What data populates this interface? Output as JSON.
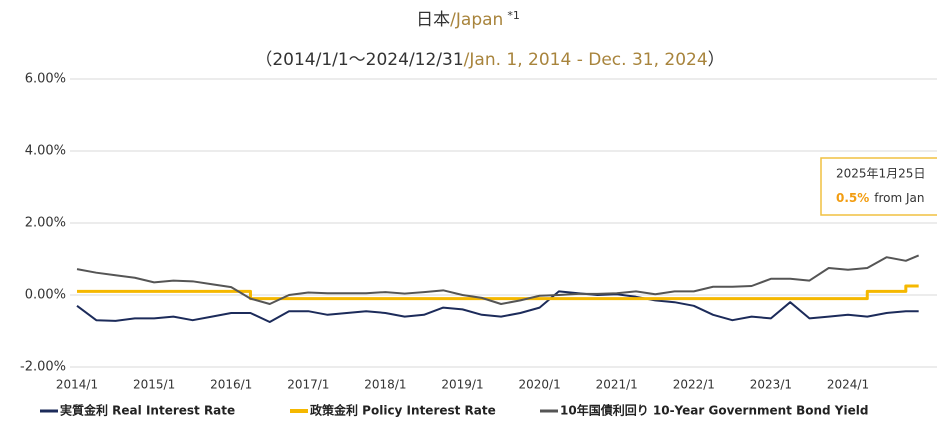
{
  "chart_data": {
    "type": "line",
    "title_parts": [
      "日本",
      "/Japan",
      "*1"
    ],
    "subtitle_parts": [
      "（2014/1/1～2024/12/31",
      "/Jan. 1, 2014 - Dec. 31, 2024",
      "）"
    ],
    "x": [
      "2014/1",
      "2014/4",
      "2014/7",
      "2014/10",
      "2015/1",
      "2015/4",
      "2015/7",
      "2015/10",
      "2016/1",
      "2016/4",
      "2016/7",
      "2016/10",
      "2017/1",
      "2017/4",
      "2017/7",
      "2017/10",
      "2018/1",
      "2018/4",
      "2018/7",
      "2018/10",
      "2019/1",
      "2019/4",
      "2019/7",
      "2019/10",
      "2020/1",
      "2020/4",
      "2020/7",
      "2020/10",
      "2021/1",
      "2021/4",
      "2021/7",
      "2021/10",
      "2022/1",
      "2022/4",
      "2022/7",
      "2022/10",
      "2023/1",
      "2023/4",
      "2023/7",
      "2023/10",
      "2024/1",
      "2024/4",
      "2024/7",
      "2024/10",
      "2024/12"
    ],
    "series": [
      {
        "name": "実質金利 Real Interest Rate",
        "color": "#1c2b5a",
        "values": [
          -0.3,
          -0.7,
          -0.72,
          -0.65,
          -0.65,
          -0.6,
          -0.7,
          -0.6,
          -0.5,
          -0.5,
          -0.75,
          -0.45,
          -0.45,
          -0.55,
          -0.5,
          -0.45,
          -0.5,
          -0.6,
          -0.55,
          -0.35,
          -0.4,
          -0.55,
          -0.6,
          -0.5,
          -0.35,
          0.1,
          0.05,
          0.0,
          0.02,
          -0.05,
          -0.15,
          -0.2,
          -0.3,
          -0.55,
          -0.7,
          -0.6,
          -0.65,
          -0.2,
          -0.65,
          -0.6,
          -0.55,
          -0.6,
          -0.5,
          -0.45,
          -0.45
        ]
      },
      {
        "name": "政策金利 Policy Interest Rate",
        "color": "#f5b800",
        "step": true,
        "values": [
          0.1,
          0.1,
          0.1,
          0.1,
          0.1,
          0.1,
          0.1,
          0.1,
          0.1,
          -0.1,
          -0.1,
          -0.1,
          -0.1,
          -0.1,
          -0.1,
          -0.1,
          -0.1,
          -0.1,
          -0.1,
          -0.1,
          -0.1,
          -0.1,
          -0.1,
          -0.1,
          -0.1,
          -0.1,
          -0.1,
          -0.1,
          -0.1,
          -0.1,
          -0.1,
          -0.1,
          -0.1,
          -0.1,
          -0.1,
          -0.1,
          -0.1,
          -0.1,
          -0.1,
          -0.1,
          -0.1,
          0.1,
          0.1,
          0.25,
          0.25
        ]
      },
      {
        "name": "10年国債利回り 10-Year Government Bond Yield",
        "color": "#555555",
        "values": [
          0.72,
          0.62,
          0.55,
          0.48,
          0.35,
          0.4,
          0.38,
          0.3,
          0.22,
          -0.1,
          -0.25,
          0.0,
          0.07,
          0.05,
          0.05,
          0.05,
          0.08,
          0.04,
          0.08,
          0.13,
          0.0,
          -0.08,
          -0.25,
          -0.15,
          -0.02,
          0.0,
          0.03,
          0.03,
          0.05,
          0.1,
          0.02,
          0.1,
          0.1,
          0.23,
          0.23,
          0.25,
          0.45,
          0.45,
          0.4,
          0.75,
          0.7,
          0.75,
          1.05,
          0.95,
          1.1
        ]
      }
    ],
    "xticks": [
      "2014/1",
      "2015/1",
      "2016/1",
      "2017/1",
      "2018/1",
      "2019/1",
      "2020/1",
      "2021/1",
      "2022/1",
      "2023/1",
      "2024/1"
    ],
    "ylim": [
      -2,
      6
    ],
    "yticks": [
      {
        "value": -2,
        "label": "-2.00%"
      },
      {
        "value": 0,
        "label": "0.00%"
      },
      {
        "value": 2,
        "label": "2.00%"
      },
      {
        "value": 4,
        "label": "4.00%"
      },
      {
        "value": 6,
        "label": "6.00%"
      }
    ],
    "grid": true,
    "annotation": {
      "date": "2025年1月25日",
      "value": "0.5%",
      "text": "from Jan"
    }
  }
}
